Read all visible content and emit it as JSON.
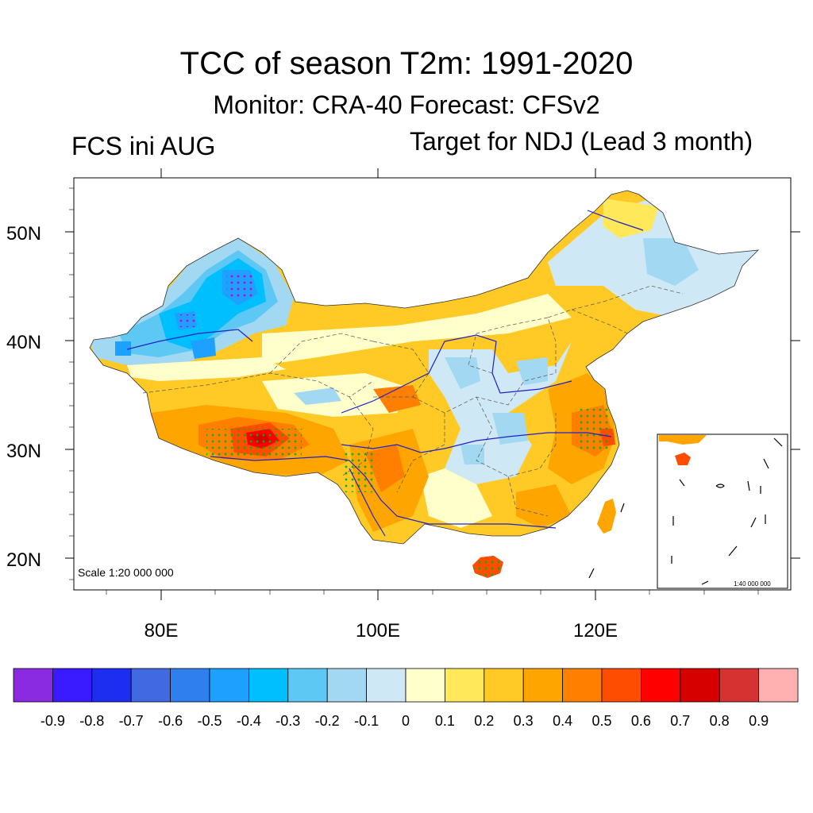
{
  "header": {
    "title": "TCC of season T2m: 1991-2020",
    "subtitle": "Monitor: CRA-40   Forecast: CFSv2",
    "left_label": "FCS ini AUG",
    "right_label": "Target for NDJ (Lead 3 month)"
  },
  "map": {
    "lat_labels": [
      "50N",
      "40N",
      "30N",
      "20N"
    ],
    "lon_labels": [
      "80E",
      "100E",
      "120E"
    ],
    "scale_main": "Scale 1:20 000 000",
    "scale_inset": "1:40 000 000",
    "projection": "lat-lon",
    "lat_range": [
      17,
      55
    ],
    "lon_range": [
      72,
      138
    ]
  },
  "colorbar": {
    "labels": [
      "-0.9",
      "-0.8",
      "-0.7",
      "-0.6",
      "-0.5",
      "-0.4",
      "-0.3",
      "-0.2",
      "-0.1",
      "0",
      "0.1",
      "0.2",
      "0.3",
      "0.4",
      "0.5",
      "0.6",
      "0.7",
      "0.8",
      "0.9"
    ],
    "colors": [
      "#8a2be2",
      "#3a1aff",
      "#1e2ef0",
      "#4169e1",
      "#2f80ee",
      "#1ea0ff",
      "#00bfff",
      "#5ec8f5",
      "#a3d8f2",
      "#cfe8f6",
      "#ffffcc",
      "#ffe85a",
      "#ffc926",
      "#ffa500",
      "#ff8000",
      "#ff4d00",
      "#ff0000",
      "#d60000",
      "#d73232",
      "#ffb0b0"
    ]
  },
  "colors": {
    "river": "#2020c8",
    "stipple": "#00b400",
    "stipple_neg": "#c800c8"
  }
}
